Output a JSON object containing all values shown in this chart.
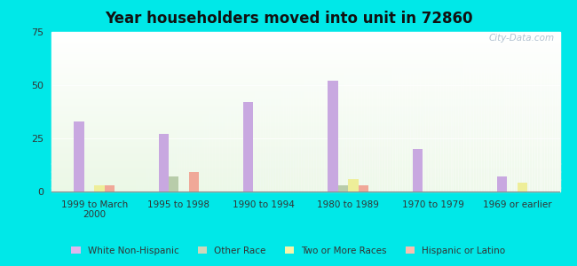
{
  "title": "Year householders moved into unit in 72860",
  "categories": [
    "1999 to March\n2000",
    "1995 to 1998",
    "1990 to 1994",
    "1980 to 1989",
    "1970 to 1979",
    "1969 or earlier"
  ],
  "series": {
    "White Non-Hispanic": [
      33,
      27,
      42,
      52,
      20,
      7
    ],
    "Other Race": [
      0,
      7,
      0,
      3,
      0,
      0
    ],
    "Two or More Races": [
      3,
      0,
      0,
      6,
      0,
      4
    ],
    "Hispanic or Latino": [
      3,
      9,
      0,
      3,
      0,
      0
    ]
  },
  "colors": {
    "White Non-Hispanic": "#c8a8e0",
    "Other Race": "#b8ccaa",
    "Two or More Races": "#eeee99",
    "Hispanic or Latino": "#f0a898"
  },
  "legend_colors": {
    "White Non-Hispanic": "#ddb8ee",
    "Other Race": "#ccd8bb",
    "Two or More Races": "#f5f5aa",
    "Hispanic or Latino": "#f8bfb0"
  },
  "ylim": [
    0,
    75
  ],
  "yticks": [
    0,
    25,
    50,
    75
  ],
  "bar_width": 0.12,
  "background_color": "#00e8e8",
  "watermark": "City-Data.com"
}
